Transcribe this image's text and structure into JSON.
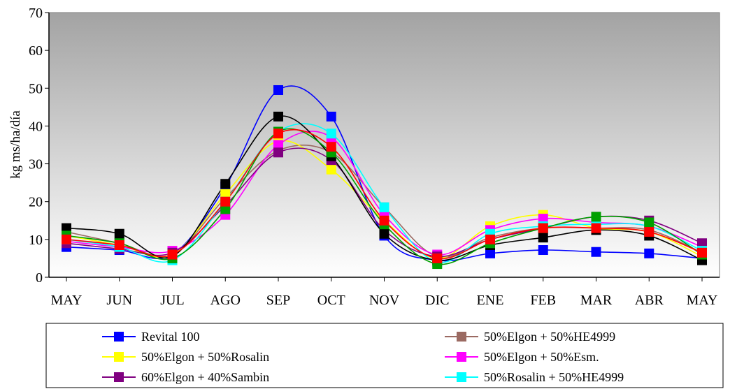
{
  "chart_data": {
    "type": "line",
    "title": "",
    "xlabel": "",
    "ylabel": "kg  ms/ha/día",
    "ylim": [
      0,
      70
    ],
    "yticks": [
      0,
      10,
      20,
      30,
      40,
      50,
      60,
      70
    ],
    "categories": [
      "MAY",
      "JUN",
      "JUL",
      "AGO",
      "SEP",
      "OCT",
      "NOV",
      "DIC",
      "ENE",
      "FEB",
      "MAR",
      "ABR",
      "MAY"
    ],
    "grid": false,
    "smooth": true,
    "legend_position": "bottom",
    "plot_background": "gradient-gray",
    "series": [
      {
        "name": "Revital 100",
        "color": "#0000ff",
        "values": [
          8,
          7.2,
          6,
          24,
          49.5,
          42.5,
          11,
          4.5,
          6.3,
          7.2,
          6.7,
          6.3,
          5
        ]
      },
      {
        "name": "50%Elgon + 50%HE4999",
        "color": "#9b6a62",
        "values": [
          12,
          9,
          6,
          21,
          33.5,
          33,
          18.5,
          5.5,
          10.5,
          13,
          13,
          12.5,
          6.5
        ]
      },
      {
        "name": "50%Elgon + 50%Rosalin",
        "color": "#ffff00",
        "values": [
          11,
          8.5,
          6,
          22,
          36,
          28.5,
          15,
          5,
          13.5,
          16.5,
          13,
          12,
          5.5
        ]
      },
      {
        "name": "50%Elgon + 50%Esm.",
        "color": "#ff00ff",
        "values": [
          9.5,
          8,
          7,
          16.5,
          35,
          37,
          16.5,
          6,
          12.5,
          15.5,
          14.5,
          13.5,
          8
        ]
      },
      {
        "name": "60%Elgon + 40%Sambin",
        "color": "#800080",
        "values": [
          9,
          7.5,
          6.5,
          19,
          33,
          31,
          12.5,
          5.5,
          10,
          13,
          16,
          15,
          9
        ]
      },
      {
        "name": "50%Rosalin + 50%HE4999",
        "color": "#00ffff",
        "values": [
          10,
          8,
          4.5,
          20,
          38.5,
          38,
          18.5,
          4,
          11.5,
          13.5,
          14,
          13.5,
          7
        ]
      },
      {
        "name": "",
        "color": "#000000",
        "values": [
          13,
          11.5,
          5.5,
          24.7,
          42.5,
          32,
          11.5,
          4.5,
          8.5,
          10.5,
          12.5,
          11,
          4.5
        ]
      },
      {
        "name": "",
        "color": "#00a000",
        "values": [
          11,
          9,
          5,
          18,
          38.5,
          33,
          14,
          3.5,
          9,
          13,
          16,
          14.5,
          6
        ]
      },
      {
        "name": "",
        "color": "#ff0000",
        "values": [
          10,
          8.5,
          6,
          20,
          38,
          34.5,
          15,
          5,
          10,
          13,
          13,
          12,
          6.5
        ]
      }
    ]
  }
}
